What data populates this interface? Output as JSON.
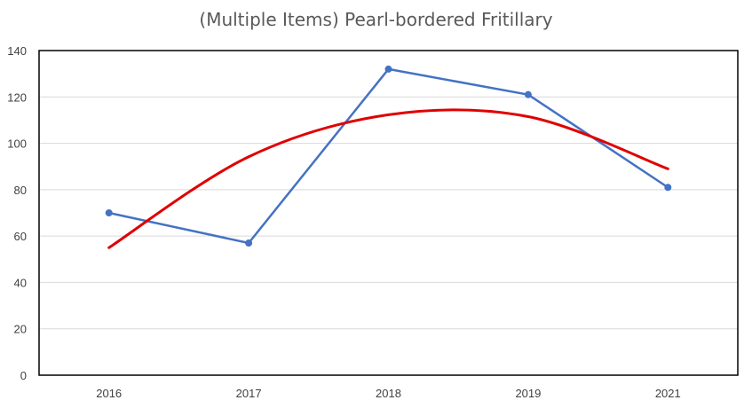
{
  "chart_data": {
    "type": "line",
    "title": "(Multiple Items) Pearl-bordered Fritillary",
    "categories": [
      "2016",
      "2017",
      "2018",
      "2019",
      "2021"
    ],
    "series": [
      {
        "values": [
          70,
          57,
          132,
          121,
          81
        ],
        "color": "#4472C4",
        "markers": true
      },
      {
        "values": [
          55,
          94.2,
          112.3,
          111.5,
          89
        ],
        "color": "#E00000",
        "trendline": "polynomial",
        "markers": false
      }
    ],
    "ylim": [
      0,
      140
    ],
    "yticks": [
      0,
      20,
      40,
      60,
      80,
      100,
      120,
      140
    ],
    "grid": true,
    "legend": "none"
  }
}
